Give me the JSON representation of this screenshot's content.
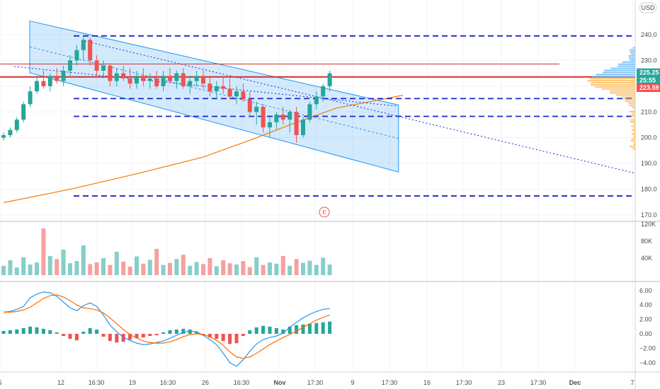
{
  "currency_button": {
    "label": "USD"
  },
  "earnings_marker": {
    "label": "E"
  },
  "colors": {
    "up": "#26a69a",
    "down": "#ef5350",
    "hline": "#1b26c8",
    "red_line": "#d32f2f",
    "channel": "#2196f3",
    "ema": "#f57c00",
    "macd": "#2196f3",
    "signal": "#ff6d00",
    "profile": "#ffb74d"
  },
  "chart_data": [
    {
      "type": "candlestick",
      "name": "price",
      "price_axis": {
        "ticks": [
          170,
          180,
          190,
          200,
          210,
          220,
          230,
          240
        ],
        "range": [
          167,
          249
        ]
      },
      "price_badges": [
        {
          "label": "225.25",
          "value": 225.25,
          "color": "#26a69a"
        },
        {
          "label": "25:55",
          "value": 222.3,
          "color": "#26a69a"
        },
        {
          "label": "223.59",
          "value": 219.4,
          "color": "#ef5350"
        }
      ],
      "horizontal_levels": [
        239.5,
        215.2,
        208.3,
        177.4
      ],
      "resistance_level": 228.6,
      "last_price_line": 223.6,
      "trend_lines": [
        {
          "from": [
            0,
            224.5
          ],
          "to": [
            110,
            185.5
          ]
        },
        {
          "from": [
            0,
            229.5
          ],
          "to": [
            62,
            212
          ]
        }
      ],
      "channel": {
        "upper": [
          [
            0,
            245.3
          ],
          [
            62,
            212.7
          ]
        ],
        "lower": [
          [
            0,
            225.2
          ],
          [
            62,
            186.7
          ]
        ]
      },
      "ema200": [
        [
          -5,
          174.8
        ],
        [
          5,
          180
        ],
        [
          15,
          186
        ],
        [
          25,
          192.5
        ],
        [
          32,
          199
        ],
        [
          38,
          205
        ],
        [
          45,
          211.5
        ],
        [
          55,
          216.5
        ]
      ],
      "candles": [
        [
          0,
          200,
          202,
          199,
          201
        ],
        [
          1,
          201,
          204,
          200,
          203
        ],
        [
          2,
          203,
          208,
          202,
          207
        ],
        [
          3,
          207,
          214,
          206,
          213
        ],
        [
          4,
          213,
          220,
          212,
          218
        ],
        [
          5,
          218,
          224,
          217,
          222
        ],
        [
          6,
          222,
          226,
          219,
          220
        ],
        [
          7,
          220,
          225,
          218,
          224
        ],
        [
          8,
          224,
          227,
          221,
          222
        ],
        [
          9,
          222,
          228,
          220,
          226
        ],
        [
          10,
          226,
          232,
          224,
          230
        ],
        [
          11,
          230,
          236,
          228,
          234
        ],
        [
          12,
          234,
          240,
          230,
          238
        ],
        [
          13,
          238,
          239,
          228,
          230
        ],
        [
          14,
          230,
          232,
          224,
          226
        ],
        [
          15,
          226,
          230,
          223,
          228
        ],
        [
          16,
          228,
          229,
          220,
          222
        ],
        [
          17,
          222,
          227,
          220,
          225
        ],
        [
          18,
          225,
          228,
          222,
          223
        ],
        [
          19,
          223,
          227,
          219,
          221
        ],
        [
          20,
          221,
          226,
          219,
          224
        ],
        [
          21,
          224,
          227,
          220,
          222
        ],
        [
          22,
          222,
          225,
          219,
          223
        ],
        [
          23,
          223,
          226,
          219,
          220
        ],
        [
          24,
          220,
          226,
          218,
          224
        ],
        [
          25,
          224,
          227,
          221,
          222
        ],
        [
          26,
          222,
          226,
          219,
          225
        ],
        [
          27,
          225,
          227,
          219,
          220
        ],
        [
          28,
          220,
          224,
          217,
          222
        ],
        [
          29,
          222,
          226,
          220,
          224
        ],
        [
          30,
          224,
          226,
          219,
          221
        ],
        [
          31,
          221,
          224,
          216,
          218
        ],
        [
          32,
          218,
          222,
          215,
          220
        ],
        [
          33,
          220,
          224,
          217,
          219
        ],
        [
          34,
          219,
          223,
          215,
          216
        ],
        [
          35,
          216,
          220,
          213,
          218
        ],
        [
          36,
          218,
          221,
          214,
          215
        ],
        [
          37,
          215,
          218,
          208,
          210
        ],
        [
          38,
          210,
          214,
          205,
          212
        ],
        [
          39,
          212,
          213,
          202,
          204
        ],
        [
          40,
          204,
          208,
          200,
          206
        ],
        [
          41,
          206,
          210,
          203,
          209
        ],
        [
          42,
          209,
          212,
          205,
          207
        ],
        [
          43,
          207,
          211,
          202,
          210
        ],
        [
          44,
          210,
          212,
          198,
          201
        ],
        [
          45,
          201,
          208,
          200,
          207
        ],
        [
          46,
          207,
          214,
          206,
          213
        ],
        [
          47,
          213,
          218,
          211,
          216
        ],
        [
          48,
          216,
          221,
          214,
          220
        ],
        [
          49,
          220,
          226,
          218,
          225
        ]
      ],
      "volume": [
        22,
        35,
        18,
        42,
        25,
        30,
        110,
        45,
        38,
        60,
        28,
        33,
        70,
        26,
        30,
        40,
        24,
        55,
        32,
        20,
        44,
        27,
        36,
        62,
        24,
        29,
        38,
        48,
        22,
        31,
        26,
        40,
        21,
        35,
        28,
        25,
        33,
        19,
        42,
        24,
        30,
        27,
        45,
        22,
        38,
        29,
        34,
        24,
        41,
        25
      ],
      "volume_axis": {
        "ticks": [
          "40K",
          "80K",
          "120K"
        ],
        "values": [
          40000,
          80000,
          120000
        ],
        "max": 125000
      }
    },
    {
      "type": "macd",
      "axis": {
        "ticks": [
          6.0,
          4.0,
          2.0,
          0.0,
          -2.0,
          -4.0
        ],
        "labels": [
          "6.00",
          "4.00",
          "2.00",
          "0.00",
          "−2.00",
          "−4.00"
        ],
        "range": [
          -5.2,
          7.2
        ]
      },
      "macd": [
        3.0,
        3.1,
        3.4,
        3.8,
        5.0,
        5.5,
        5.8,
        5.7,
        5.2,
        4.4,
        3.6,
        3.2,
        3.9,
        4.3,
        3.8,
        2.6,
        1.2,
        0.3,
        -0.5,
        -0.9,
        -1.3,
        -1.5,
        -1.4,
        -1.2,
        -1.0,
        -0.6,
        -0.2,
        0.2,
        0.4,
        0.3,
        -0.2,
        -0.8,
        -1.5,
        -2.7,
        -4.0,
        -4.5,
        -3.6,
        -2.4,
        -1.4,
        -0.8,
        -0.5,
        -0.3,
        0.1,
        0.9,
        1.6,
        2.2,
        2.7,
        3.1,
        3.4,
        3.5
      ],
      "signal": [
        3.0,
        3.0,
        3.1,
        3.3,
        3.7,
        4.3,
        4.9,
        5.3,
        5.4,
        5.1,
        4.6,
        4.0,
        3.6,
        3.5,
        3.3,
        2.9,
        2.2,
        1.4,
        0.6,
        -0.1,
        -0.6,
        -1.0,
        -1.2,
        -1.3,
        -1.3,
        -1.1,
        -0.8,
        -0.4,
        -0.1,
        0.0,
        -0.1,
        -0.4,
        -0.9,
        -1.6,
        -2.5,
        -3.2,
        -3.4,
        -3.2,
        -2.7,
        -2.1,
        -1.5,
        -1.0,
        -0.5,
        -0.1,
        0.4,
        0.9,
        1.4,
        1.9,
        2.3,
        2.6
      ],
      "histogram": [
        0.4,
        0.5,
        0.6,
        0.8,
        1.0,
        0.9,
        0.7,
        0.5,
        0.2,
        -0.3,
        -0.7,
        -0.9,
        0.3,
        0.8,
        0.6,
        -0.4,
        -1.0,
        -1.2,
        -1.1,
        -0.8,
        -0.6,
        -0.5,
        -0.3,
        -0.2,
        0.2,
        0.5,
        0.6,
        0.7,
        0.6,
        0.3,
        -0.2,
        -0.5,
        -0.7,
        -1.0,
        -1.4,
        -1.3,
        -0.3,
        0.5,
        0.9,
        1.1,
        1.0,
        0.8,
        0.6,
        1.0,
        1.2,
        1.3,
        1.4,
        1.5,
        1.6,
        1.7
      ]
    }
  ],
  "time_axis": {
    "labels": [
      "5",
      "12",
      "16:30",
      "19",
      "16:30",
      "26",
      "16:30",
      "Nov",
      "17:30",
      "9",
      "17:30",
      "16",
      "17:30",
      "23",
      "17:30",
      "Dec",
      "7"
    ],
    "bold": [
      "Nov",
      "Dec"
    ]
  }
}
